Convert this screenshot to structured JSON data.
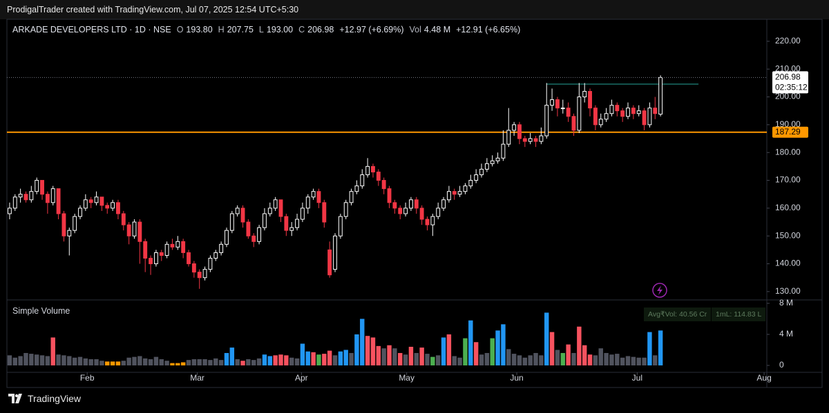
{
  "header": "ProdigalTrader created with TradingView.com, Jul 07, 2025 12:54 UTC+5:30",
  "footer": "TradingView",
  "chart_data": {
    "type": "candlestick",
    "legend": {
      "symbol": "ARKADE DEVELOPERS LTD · 1D · NSE",
      "o_key": "O",
      "o": "193.80",
      "h_key": "H",
      "h": "207.75",
      "l_key": "L",
      "l": "193.00",
      "c_key": "C",
      "c": "206.98",
      "change": "+12.97 (+6.69%)",
      "vol_key": "Vol",
      "vol": "4.48 M",
      "vol_change": "+12.91 (+6.65%)"
    },
    "volume_title": "Simple Volume",
    "volume_stats": [
      "Avg₹Vol: 40.56 Cr",
      "1mL: 114.83 L"
    ],
    "up_color": "#ffffff",
    "down_color": "#f23645",
    "ohlc": [
      [
        158,
        162,
        156,
        160
      ],
      [
        160,
        165,
        159,
        164
      ],
      [
        164,
        167,
        162,
        165
      ],
      [
        165,
        166,
        162,
        163
      ],
      [
        163,
        168,
        162,
        166
      ],
      [
        166,
        171,
        165,
        170
      ],
      [
        170,
        170,
        163,
        165
      ],
      [
        165,
        166,
        158,
        162
      ],
      [
        162,
        168,
        161,
        167
      ],
      [
        167,
        167,
        156,
        158
      ],
      [
        158,
        159,
        148,
        150
      ],
      [
        150,
        153,
        143,
        152
      ],
      [
        152,
        158,
        151,
        157
      ],
      [
        157,
        161,
        156,
        160
      ],
      [
        160,
        165,
        159,
        163
      ],
      [
        163,
        164,
        160,
        162
      ],
      [
        162,
        166,
        161,
        164
      ],
      [
        164,
        164,
        159,
        161
      ],
      [
        161,
        162,
        158,
        160
      ],
      [
        160,
        163,
        159,
        162
      ],
      [
        162,
        163,
        156,
        158
      ],
      [
        158,
        159,
        152,
        154
      ],
      [
        154,
        155,
        147,
        150
      ],
      [
        150,
        156,
        149,
        155
      ],
      [
        155,
        156,
        140,
        148
      ],
      [
        148,
        149,
        137,
        142
      ],
      [
        142,
        143,
        136,
        140
      ],
      [
        140,
        145,
        139,
        144
      ],
      [
        144,
        145,
        141,
        143
      ],
      [
        143,
        148,
        142,
        147
      ],
      [
        147,
        149,
        145,
        146
      ],
      [
        146,
        150,
        145,
        148
      ],
      [
        148,
        149,
        142,
        144
      ],
      [
        144,
        145,
        139,
        140
      ],
      [
        140,
        141,
        135,
        137
      ],
      [
        137,
        138,
        131,
        135
      ],
      [
        135,
        139,
        134,
        138
      ],
      [
        138,
        143,
        137,
        142
      ],
      [
        142,
        145,
        141,
        144
      ],
      [
        144,
        148,
        143,
        147
      ],
      [
        147,
        153,
        146,
        152
      ],
      [
        152,
        159,
        151,
        158
      ],
      [
        158,
        161,
        157,
        160
      ],
      [
        160,
        161,
        153,
        155
      ],
      [
        155,
        156,
        149,
        150
      ],
      [
        150,
        151,
        146,
        148
      ],
      [
        148,
        154,
        147,
        153
      ],
      [
        153,
        160,
        152,
        158
      ],
      [
        158,
        162,
        157,
        160
      ],
      [
        160,
        164,
        159,
        163
      ],
      [
        163,
        163,
        155,
        157
      ],
      [
        157,
        158,
        150,
        152
      ],
      [
        152,
        155,
        150,
        153
      ],
      [
        153,
        158,
        152,
        156
      ],
      [
        156,
        162,
        155,
        160
      ],
      [
        160,
        165,
        158,
        164
      ],
      [
        164,
        167,
        163,
        166
      ],
      [
        166,
        167,
        160,
        162
      ],
      [
        162,
        163,
        153,
        155
      ],
      [
        145,
        148,
        135,
        136
      ],
      [
        138,
        151,
        137,
        150
      ],
      [
        150,
        158,
        149,
        157
      ],
      [
        157,
        163,
        156,
        162
      ],
      [
        162,
        167,
        161,
        166
      ],
      [
        166,
        170,
        165,
        168
      ],
      [
        168,
        174,
        167,
        172
      ],
      [
        172,
        178,
        171,
        175
      ],
      [
        175,
        176,
        171,
        173
      ],
      [
        173,
        174,
        168,
        170
      ],
      [
        170,
        171,
        165,
        167
      ],
      [
        167,
        168,
        160,
        162
      ],
      [
        162,
        163,
        158,
        160
      ],
      [
        160,
        161,
        156,
        158
      ],
      [
        158,
        162,
        157,
        160
      ],
      [
        160,
        164,
        159,
        163
      ],
      [
        163,
        164,
        158,
        160
      ],
      [
        160,
        161,
        154,
        156
      ],
      [
        156,
        157,
        152,
        154
      ],
      [
        154,
        158,
        150,
        157
      ],
      [
        157,
        162,
        156,
        160
      ],
      [
        160,
        164,
        159,
        163
      ],
      [
        163,
        168,
        162,
        166
      ],
      [
        166,
        167,
        163,
        165
      ],
      [
        165,
        168,
        164,
        166
      ],
      [
        166,
        169,
        165,
        168
      ],
      [
        168,
        172,
        167,
        170
      ],
      [
        170,
        174,
        169,
        172
      ],
      [
        172,
        176,
        171,
        174
      ],
      [
        174,
        178,
        173,
        176
      ],
      [
        176,
        179,
        175,
        177
      ],
      [
        177,
        180,
        176,
        178
      ],
      [
        178,
        188,
        177,
        183
      ],
      [
        183,
        196,
        182,
        188
      ],
      [
        188,
        191,
        186,
        190
      ],
      [
        190,
        191,
        183,
        185
      ],
      [
        185,
        186,
        182,
        184
      ],
      [
        184,
        187,
        183,
        185
      ],
      [
        185,
        186,
        182,
        184
      ],
      [
        184,
        189,
        183,
        186
      ],
      [
        186,
        205,
        185,
        197
      ],
      [
        197,
        203,
        195,
        199
      ],
      [
        199,
        200,
        193,
        196
      ],
      [
        196,
        199,
        194,
        196
      ],
      [
        196,
        198,
        191,
        193
      ],
      [
        193,
        194,
        186,
        188
      ],
      [
        188,
        205,
        187,
        200
      ],
      [
        200,
        205,
        198,
        202
      ],
      [
        202,
        203,
        193,
        196
      ],
      [
        196,
        197,
        188,
        190
      ],
      [
        190,
        194,
        189,
        192
      ],
      [
        192,
        196,
        191,
        194
      ],
      [
        194,
        199,
        193,
        197
      ],
      [
        197,
        198,
        193,
        195
      ],
      [
        195,
        196,
        191,
        193
      ],
      [
        193,
        198,
        192,
        196
      ],
      [
        196,
        197,
        192,
        194
      ],
      [
        194,
        197,
        193,
        195
      ],
      [
        195,
        196,
        188,
        190
      ],
      [
        190,
        198,
        189,
        196
      ],
      [
        196,
        200,
        192,
        194
      ],
      [
        193.8,
        207.75,
        193,
        206.98
      ]
    ],
    "volume": [
      1.3,
      1.0,
      1.2,
      1.6,
      1.5,
      1.4,
      1.3,
      1.2,
      3.6,
      1.4,
      1.3,
      1.2,
      1.0,
      1.1,
      0.9,
      0.8,
      0.8,
      0.6,
      0.5,
      0.5,
      0.5,
      0.6,
      1.0,
      1.1,
      1.2,
      0.9,
      0.8,
      1.1,
      0.8,
      0.6,
      0.3,
      0.3,
      0.4,
      0.7,
      0.8,
      0.8,
      0.8,
      0.7,
      0.9,
      0.7,
      1.6,
      2.3,
      0.8,
      0.6,
      0.8,
      0.7,
      0.9,
      1.4,
      1.2,
      1.3,
      1.4,
      1.3,
      1.0,
      0.9,
      2.8,
      1.8,
      1.7,
      1.4,
      1.5,
      1.9,
      1.3,
      1.8,
      2.0,
      1.6,
      4.0,
      6.0,
      3.8,
      3.6,
      2.5,
      2.2,
      2.6,
      2.2,
      1.6,
      1.4,
      2.4,
      1.6,
      2.3,
      1.5,
      1.1,
      1.3,
      3.6,
      4.0,
      1.2,
      1.0,
      3.5,
      5.8,
      3.0,
      1.4,
      1.6,
      3.5,
      4.5,
      5.3,
      2.1,
      1.5,
      1.3,
      1.0,
      1.3,
      1.6,
      1.3,
      6.8,
      4.3,
      2.0,
      1.6,
      2.7,
      1.6,
      5.0,
      2.6,
      1.4,
      1.3,
      2.2,
      1.6,
      1.4,
      1.5,
      1.0,
      1.2,
      1.1,
      1.0,
      1.0,
      4.3,
      1.3,
      4.5
    ],
    "volume_colors": [
      "#50535e",
      "#50535e",
      "#50535e",
      "#50535e",
      "#50535e",
      "#50535e",
      "#50535e",
      "#50535e",
      "#f7525f",
      "#50535e",
      "#50535e",
      "#50535e",
      "#50535e",
      "#50535e",
      "#50535e",
      "#50535e",
      "#50535e",
      "#50535e",
      "#ff9800",
      "#ff9800",
      "#ff9800",
      "#50535e",
      "#50535e",
      "#50535e",
      "#50535e",
      "#50535e",
      "#50535e",
      "#50535e",
      "#50535e",
      "#50535e",
      "#ff9800",
      "#ff9800",
      "#ff9800",
      "#50535e",
      "#50535e",
      "#50535e",
      "#50535e",
      "#50535e",
      "#50535e",
      "#50535e",
      "#2196f3",
      "#2196f3",
      "#50535e",
      "#f7525f",
      "#50535e",
      "#50535e",
      "#50535e",
      "#2196f3",
      "#2196f3",
      "#f7525f",
      "#f7525f",
      "#f7525f",
      "#50535e",
      "#50535e",
      "#2196f3",
      "#2196f3",
      "#f7525f",
      "#4caf50",
      "#f7525f",
      "#f7525f",
      "#50535e",
      "#2196f3",
      "#2196f3",
      "#50535e",
      "#2196f3",
      "#2196f3",
      "#f7525f",
      "#f7525f",
      "#f7525f",
      "#50535e",
      "#f7525f",
      "#50535e",
      "#f7525f",
      "#50535e",
      "#f7525f",
      "#50535e",
      "#f7525f",
      "#50535e",
      "#4caf50",
      "#50535e",
      "#2196f3",
      "#f7525f",
      "#50535e",
      "#50535e",
      "#4caf50",
      "#2196f3",
      "#f7525f",
      "#50535e",
      "#50535e",
      "#4caf50",
      "#2196f3",
      "#2196f3",
      "#50535e",
      "#50535e",
      "#50535e",
      "#50535e",
      "#50535e",
      "#50535e",
      "#50535e",
      "#2196f3",
      "#f7525f",
      "#50535e",
      "#4caf50",
      "#f7525f",
      "#50535e",
      "#f7525f",
      "#f7525f",
      "#f7525f",
      "#50535e",
      "#50535e",
      "#50535e",
      "#50535e",
      "#50535e",
      "#50535e",
      "#50535e",
      "#50535e",
      "#50535e",
      "#50535e",
      "#2196f3",
      "#50535e",
      "#2196f3"
    ],
    "xlim": [
      -0.5,
      139.6
    ],
    "xticks": [
      {
        "value": 14.3,
        "label": "Feb"
      },
      {
        "value": 34.6,
        "label": "Mar"
      },
      {
        "value": 53.8,
        "label": "Apr"
      },
      {
        "value": 73.2,
        "label": "May"
      },
      {
        "value": 93.5,
        "label": "Jun"
      },
      {
        "value": 115.7,
        "label": "Jul"
      },
      {
        "value": 139.1,
        "label": "Aug"
      }
    ],
    "ylim": [
      127,
      227.9
    ],
    "yticks": [
      {
        "value": 130,
        "label": "130.00"
      },
      {
        "value": 140,
        "label": "140.00"
      },
      {
        "value": 150,
        "label": "150.00"
      },
      {
        "value": 160,
        "label": "160.00"
      },
      {
        "value": 170,
        "label": "170.00"
      },
      {
        "value": 180,
        "label": "180.00"
      },
      {
        "value": 190,
        "label": "190.00"
      },
      {
        "value": 200,
        "label": "200.00"
      },
      {
        "value": 210,
        "label": "210.00"
      },
      {
        "value": 220,
        "label": "220.00"
      }
    ],
    "vlim": [
      -0.89,
      8.44
    ],
    "vticks": [
      0,
      {
        "value": 4,
        "label": "4 M"
      },
      {
        "value": 8,
        "label": "8 M"
      }
    ],
    "grid": false,
    "hlines": [
      {
        "value": 187.29,
        "label": "187.29",
        "color": "#ff9800"
      },
      {
        "value": 204.6,
        "color": "#26a69a",
        "x_range": [
          99,
          127
        ]
      }
    ],
    "last_price": {
      "value": 206.98,
      "label": "206.98",
      "countdown": "02:35:12"
    }
  }
}
